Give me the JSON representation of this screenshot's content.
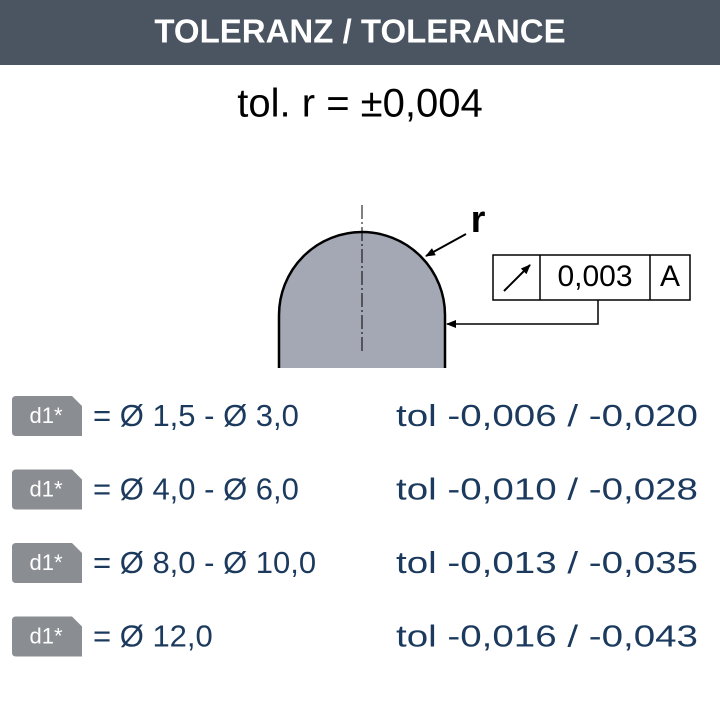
{
  "header": {
    "title": "TOLERANZ / TOLERANCE"
  },
  "formula": "tol. r = ±0,004",
  "drawing": {
    "radius_label": "r",
    "frame": {
      "value": "0,003",
      "datum": "A"
    }
  },
  "rows": [
    {
      "badge": "d1*",
      "range": "= Ø 1,5 - Ø 3,0",
      "tolerance": "tol -0,006 / -0,020"
    },
    {
      "badge": "d1*",
      "range": "= Ø 4,0 - Ø 6,0",
      "tolerance": "tol -0,010 / -0,028"
    },
    {
      "badge": "d1*",
      "range": "= Ø 8,0 - Ø 10,0",
      "tolerance": "tol -0,013 / -0,035"
    },
    {
      "badge": "d1*",
      "range": "= Ø 12,0",
      "tolerance": "tol -0,016 / -0,043"
    }
  ]
}
